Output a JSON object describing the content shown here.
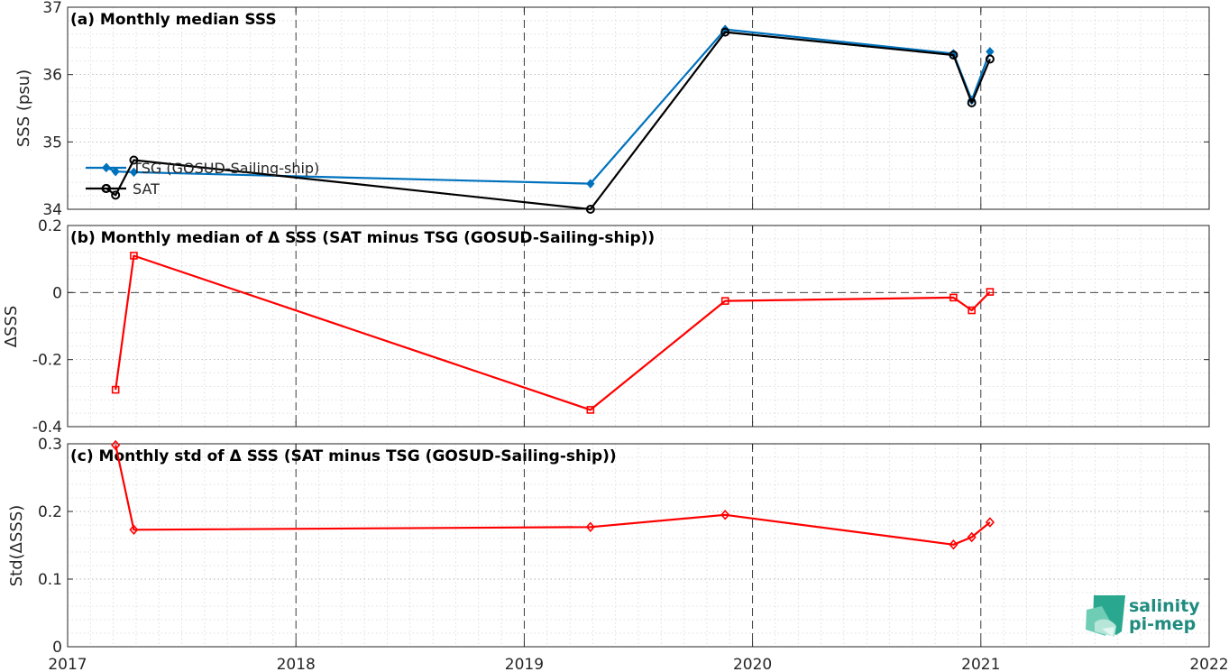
{
  "chart_data": [
    {
      "type": "line",
      "title": "(a) Monthly median SSS",
      "ylabel": "SSS (psu)",
      "xlim": [
        2017,
        2022
      ],
      "ylim": [
        34,
        37
      ],
      "xticks": [
        2017,
        2018,
        2019,
        2020,
        2021,
        2022
      ],
      "xtick_labels": [
        "2017",
        "2018",
        "2019",
        "2020",
        "2021",
        "2022"
      ],
      "yticks": [
        34,
        35,
        36,
        37
      ],
      "ytick_labels": [
        "34",
        "35",
        "36",
        "37"
      ],
      "grid": true,
      "legend_position": "left",
      "series": [
        {
          "name": "TSG (GOSUD-Sailing-ship)",
          "color": "#0072bd",
          "marker": "diamond",
          "x": [
            2017.17,
            2017.21,
            2017.29,
            2019.29,
            2019.88,
            2020.88,
            2020.96,
            2021.04
          ],
          "y": [
            34.62,
            34.56,
            34.55,
            34.38,
            36.67,
            36.31,
            35.62,
            36.34
          ]
        },
        {
          "name": "SAT",
          "color": "#000000",
          "marker": "circle",
          "x": [
            2017.17,
            2017.21,
            2017.29,
            2019.29,
            2019.88,
            2020.88,
            2020.96,
            2021.04
          ],
          "y": [
            34.31,
            34.21,
            34.73,
            34.0,
            36.63,
            36.29,
            35.58,
            36.23
          ]
        }
      ]
    },
    {
      "type": "line",
      "title": "(b) Monthly median of Δ SSS (SAT minus TSG (GOSUD-Sailing-ship))",
      "ylabel": "ΔSSS",
      "xlim": [
        2017,
        2022
      ],
      "ylim": [
        -0.4,
        0.2
      ],
      "xticks": [
        2017,
        2018,
        2019,
        2020,
        2021,
        2022
      ],
      "yticks": [
        -0.4,
        -0.2,
        0,
        0.2
      ],
      "ytick_labels": [
        "-0.4",
        "-0.2",
        "0",
        "0.2"
      ],
      "grid": true,
      "series": [
        {
          "color": "#ff0000",
          "marker": "square",
          "x": [
            2017.21,
            2017.29,
            2019.29,
            2019.88,
            2020.88,
            2020.96,
            2021.04
          ],
          "y": [
            -0.29,
            0.11,
            -0.35,
            -0.025,
            -0.015,
            -0.053,
            0.002
          ]
        }
      ]
    },
    {
      "type": "line",
      "title": "(c) Monthly std of Δ SSS (SAT minus TSG (GOSUD-Sailing-ship))",
      "ylabel": "Std(ΔSSS)",
      "xlim": [
        2017,
        2022
      ],
      "ylim": [
        0,
        0.3
      ],
      "xticks": [
        2017,
        2018,
        2019,
        2020,
        2021,
        2022
      ],
      "xtick_labels": [
        "2017",
        "2018",
        "2019",
        "2020",
        "2021",
        "2022"
      ],
      "yticks": [
        0,
        0.1,
        0.2,
        0.3
      ],
      "ytick_labels": [
        "0",
        "0.1",
        "0.2",
        "0.3"
      ],
      "grid": true,
      "series": [
        {
          "color": "#ff0000",
          "marker": "diamond",
          "x": [
            2017.21,
            2017.29,
            2019.29,
            2019.88,
            2020.88,
            2020.96,
            2021.04
          ],
          "y": [
            0.298,
            0.173,
            0.177,
            0.195,
            0.151,
            0.162,
            0.184
          ]
        }
      ]
    }
  ],
  "logo": {
    "line1": "salinity",
    "line2": "pi-mep"
  }
}
